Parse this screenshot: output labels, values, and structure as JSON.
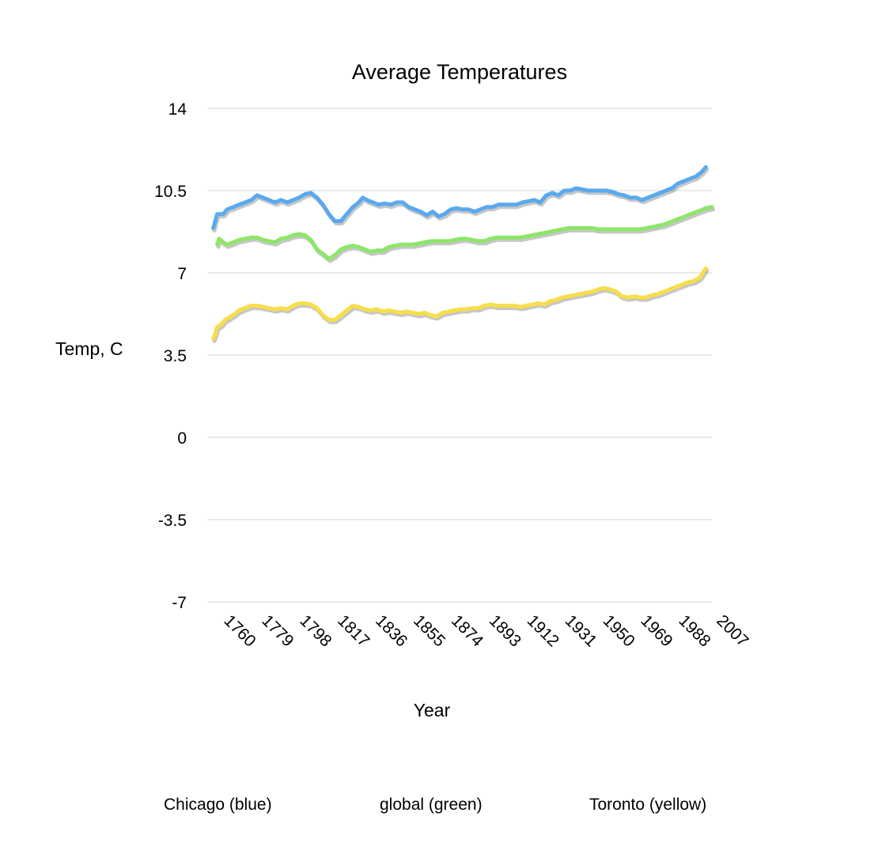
{
  "chart_data": {
    "type": "line",
    "title": "Average Temperatures",
    "xlabel": "Year",
    "ylabel": "Temp, C",
    "ylim": [
      -7,
      14
    ],
    "yticks": [
      "14",
      "10.5",
      "7",
      "3.5",
      "0",
      "-3.5",
      "-7"
    ],
    "ytick_values": [
      14,
      10.5,
      7,
      3.5,
      0,
      -3.5,
      -7
    ],
    "xlim": [
      1760,
      2013
    ],
    "xticks": [
      "1760",
      "1779",
      "1798",
      "1817",
      "1836",
      "1855",
      "1874",
      "1893",
      "1912",
      "1931",
      "1950",
      "1969",
      "1988",
      "2007"
    ],
    "xtick_values": [
      1760,
      1779,
      1798,
      1817,
      1836,
      1855,
      1874,
      1893,
      1912,
      1931,
      1950,
      1969,
      1988,
      2007
    ],
    "grid": true,
    "legend_entries": [
      "Chicago (blue)",
      "global (green)",
      "Toronto (yellow)"
    ],
    "series": [
      {
        "color": "#5aa9ee",
        "points": [
          [
            1763,
            8.9
          ],
          [
            1764,
            9.2
          ],
          [
            1765,
            9.5
          ],
          [
            1768,
            9.5
          ],
          [
            1770,
            9.7
          ],
          [
            1773,
            9.8
          ],
          [
            1776,
            9.9
          ],
          [
            1779,
            10.0
          ],
          [
            1782,
            10.1
          ],
          [
            1785,
            10.3
          ],
          [
            1788,
            10.2
          ],
          [
            1791,
            10.1
          ],
          [
            1794,
            10.0
          ],
          [
            1797,
            10.1
          ],
          [
            1800,
            10.0
          ],
          [
            1803,
            10.1
          ],
          [
            1806,
            10.2
          ],
          [
            1809,
            10.35
          ],
          [
            1812,
            10.4
          ],
          [
            1815,
            10.2
          ],
          [
            1818,
            9.9
          ],
          [
            1821,
            9.5
          ],
          [
            1824,
            9.2
          ],
          [
            1827,
            9.2
          ],
          [
            1830,
            9.5
          ],
          [
            1833,
            9.8
          ],
          [
            1836,
            10.0
          ],
          [
            1838,
            10.2
          ],
          [
            1840,
            10.1
          ],
          [
            1843,
            10.0
          ],
          [
            1846,
            9.9
          ],
          [
            1849,
            9.95
          ],
          [
            1852,
            9.9
          ],
          [
            1855,
            10.0
          ],
          [
            1858,
            10.0
          ],
          [
            1861,
            9.8
          ],
          [
            1864,
            9.7
          ],
          [
            1867,
            9.6
          ],
          [
            1870,
            9.45
          ],
          [
            1873,
            9.6
          ],
          [
            1876,
            9.4
          ],
          [
            1879,
            9.5
          ],
          [
            1882,
            9.7
          ],
          [
            1885,
            9.75
          ],
          [
            1888,
            9.7
          ],
          [
            1891,
            9.7
          ],
          [
            1894,
            9.6
          ],
          [
            1897,
            9.7
          ],
          [
            1900,
            9.8
          ],
          [
            1903,
            9.8
          ],
          [
            1906,
            9.9
          ],
          [
            1909,
            9.9
          ],
          [
            1912,
            9.9
          ],
          [
            1915,
            9.9
          ],
          [
            1918,
            10.0
          ],
          [
            1921,
            10.05
          ],
          [
            1924,
            10.1
          ],
          [
            1927,
            10.0
          ],
          [
            1930,
            10.3
          ],
          [
            1933,
            10.4
          ],
          [
            1936,
            10.3
          ],
          [
            1939,
            10.5
          ],
          [
            1942,
            10.5
          ],
          [
            1945,
            10.6
          ],
          [
            1948,
            10.55
          ],
          [
            1951,
            10.5
          ],
          [
            1954,
            10.5
          ],
          [
            1957,
            10.5
          ],
          [
            1960,
            10.5
          ],
          [
            1963,
            10.45
          ],
          [
            1966,
            10.35
          ],
          [
            1969,
            10.3
          ],
          [
            1972,
            10.2
          ],
          [
            1975,
            10.2
          ],
          [
            1978,
            10.1
          ],
          [
            1981,
            10.2
          ],
          [
            1984,
            10.3
          ],
          [
            1987,
            10.4
          ],
          [
            1990,
            10.5
          ],
          [
            1993,
            10.6
          ],
          [
            1996,
            10.8
          ],
          [
            1999,
            10.9
          ],
          [
            2002,
            11.0
          ],
          [
            2005,
            11.1
          ],
          [
            2008,
            11.3
          ],
          [
            2010,
            11.5
          ]
        ]
      },
      {
        "color": "#8ee56a",
        "points": [
          [
            1765,
            8.2
          ],
          [
            1766,
            8.45
          ],
          [
            1768,
            8.3
          ],
          [
            1770,
            8.2
          ],
          [
            1773,
            8.3
          ],
          [
            1776,
            8.4
          ],
          [
            1779,
            8.45
          ],
          [
            1782,
            8.5
          ],
          [
            1785,
            8.5
          ],
          [
            1788,
            8.4
          ],
          [
            1791,
            8.35
          ],
          [
            1794,
            8.3
          ],
          [
            1797,
            8.45
          ],
          [
            1800,
            8.5
          ],
          [
            1803,
            8.6
          ],
          [
            1806,
            8.65
          ],
          [
            1809,
            8.6
          ],
          [
            1812,
            8.4
          ],
          [
            1815,
            8.0
          ],
          [
            1818,
            7.8
          ],
          [
            1821,
            7.6
          ],
          [
            1824,
            7.75
          ],
          [
            1827,
            8.0
          ],
          [
            1830,
            8.1
          ],
          [
            1833,
            8.15
          ],
          [
            1836,
            8.1
          ],
          [
            1839,
            8.0
          ],
          [
            1842,
            7.9
          ],
          [
            1845,
            7.95
          ],
          [
            1848,
            7.95
          ],
          [
            1851,
            8.1
          ],
          [
            1854,
            8.15
          ],
          [
            1857,
            8.2
          ],
          [
            1860,
            8.2
          ],
          [
            1863,
            8.2
          ],
          [
            1866,
            8.25
          ],
          [
            1869,
            8.3
          ],
          [
            1872,
            8.35
          ],
          [
            1875,
            8.35
          ],
          [
            1878,
            8.35
          ],
          [
            1881,
            8.35
          ],
          [
            1884,
            8.4
          ],
          [
            1887,
            8.45
          ],
          [
            1890,
            8.45
          ],
          [
            1893,
            8.4
          ],
          [
            1896,
            8.35
          ],
          [
            1899,
            8.35
          ],
          [
            1902,
            8.45
          ],
          [
            1905,
            8.5
          ],
          [
            1908,
            8.5
          ],
          [
            1911,
            8.5
          ],
          [
            1914,
            8.5
          ],
          [
            1917,
            8.5
          ],
          [
            1920,
            8.55
          ],
          [
            1923,
            8.6
          ],
          [
            1926,
            8.65
          ],
          [
            1929,
            8.7
          ],
          [
            1932,
            8.75
          ],
          [
            1935,
            8.8
          ],
          [
            1938,
            8.85
          ],
          [
            1941,
            8.9
          ],
          [
            1944,
            8.9
          ],
          [
            1947,
            8.9
          ],
          [
            1950,
            8.9
          ],
          [
            1953,
            8.9
          ],
          [
            1956,
            8.85
          ],
          [
            1959,
            8.85
          ],
          [
            1962,
            8.85
          ],
          [
            1965,
            8.85
          ],
          [
            1968,
            8.85
          ],
          [
            1971,
            8.85
          ],
          [
            1974,
            8.85
          ],
          [
            1977,
            8.85
          ],
          [
            1980,
            8.9
          ],
          [
            1983,
            8.95
          ],
          [
            1986,
            9.0
          ],
          [
            1989,
            9.05
          ],
          [
            1992,
            9.15
          ],
          [
            1995,
            9.25
          ],
          [
            1998,
            9.35
          ],
          [
            2001,
            9.45
          ],
          [
            2004,
            9.55
          ],
          [
            2007,
            9.65
          ],
          [
            2010,
            9.75
          ],
          [
            2013,
            9.8
          ]
        ]
      },
      {
        "color": "#f7de4a",
        "points": [
          [
            1763,
            4.2
          ],
          [
            1764,
            4.4
          ],
          [
            1765,
            4.7
          ],
          [
            1767,
            4.8
          ],
          [
            1769,
            5.0
          ],
          [
            1771,
            5.1
          ],
          [
            1773,
            5.2
          ],
          [
            1776,
            5.4
          ],
          [
            1779,
            5.5
          ],
          [
            1782,
            5.6
          ],
          [
            1785,
            5.6
          ],
          [
            1788,
            5.55
          ],
          [
            1791,
            5.5
          ],
          [
            1794,
            5.45
          ],
          [
            1797,
            5.5
          ],
          [
            1800,
            5.45
          ],
          [
            1803,
            5.6
          ],
          [
            1806,
            5.7
          ],
          [
            1809,
            5.7
          ],
          [
            1812,
            5.65
          ],
          [
            1815,
            5.5
          ],
          [
            1818,
            5.2
          ],
          [
            1821,
            5.0
          ],
          [
            1824,
            5.0
          ],
          [
            1827,
            5.2
          ],
          [
            1830,
            5.4
          ],
          [
            1833,
            5.6
          ],
          [
            1836,
            5.55
          ],
          [
            1839,
            5.45
          ],
          [
            1842,
            5.4
          ],
          [
            1845,
            5.45
          ],
          [
            1848,
            5.35
          ],
          [
            1851,
            5.4
          ],
          [
            1854,
            5.35
          ],
          [
            1857,
            5.3
          ],
          [
            1860,
            5.35
          ],
          [
            1863,
            5.3
          ],
          [
            1866,
            5.25
          ],
          [
            1869,
            5.3
          ],
          [
            1872,
            5.2
          ],
          [
            1875,
            5.15
          ],
          [
            1878,
            5.3
          ],
          [
            1881,
            5.35
          ],
          [
            1884,
            5.4
          ],
          [
            1887,
            5.45
          ],
          [
            1890,
            5.45
          ],
          [
            1893,
            5.5
          ],
          [
            1896,
            5.5
          ],
          [
            1899,
            5.6
          ],
          [
            1902,
            5.65
          ],
          [
            1905,
            5.6
          ],
          [
            1908,
            5.6
          ],
          [
            1911,
            5.6
          ],
          [
            1914,
            5.6
          ],
          [
            1917,
            5.55
          ],
          [
            1920,
            5.6
          ],
          [
            1923,
            5.65
          ],
          [
            1926,
            5.7
          ],
          [
            1929,
            5.65
          ],
          [
            1932,
            5.8
          ],
          [
            1935,
            5.85
          ],
          [
            1938,
            5.95
          ],
          [
            1941,
            6.0
          ],
          [
            1944,
            6.05
          ],
          [
            1947,
            6.1
          ],
          [
            1950,
            6.15
          ],
          [
            1953,
            6.2
          ],
          [
            1956,
            6.3
          ],
          [
            1959,
            6.35
          ],
          [
            1962,
            6.3
          ],
          [
            1965,
            6.2
          ],
          [
            1968,
            6.0
          ],
          [
            1971,
            5.95
          ],
          [
            1974,
            6.0
          ],
          [
            1977,
            5.95
          ],
          [
            1980,
            5.95
          ],
          [
            1983,
            6.05
          ],
          [
            1986,
            6.1
          ],
          [
            1989,
            6.2
          ],
          [
            1992,
            6.3
          ],
          [
            1995,
            6.4
          ],
          [
            1998,
            6.5
          ],
          [
            2001,
            6.6
          ],
          [
            2004,
            6.65
          ],
          [
            2007,
            6.8
          ],
          [
            2010,
            7.2
          ]
        ]
      }
    ]
  }
}
